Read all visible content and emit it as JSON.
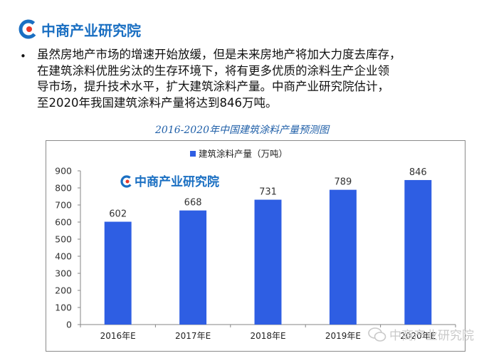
{
  "header": {
    "logo_text": "中商产业研究院",
    "brand_color": "#1a6fc2"
  },
  "bullet": {
    "lines": [
      "虽然房地产市场的增速开始放缓，但是未来房地产将加大力度去库存，",
      "在建筑涂料优胜劣汰的生存环境下，将有更多优质的涂料生产企业领",
      "导市场，提升技术水平，扩大建筑涂料产量。中商产业研究院估计，",
      "至2020年我国建筑涂料产量将达到846万吨。"
    ]
  },
  "chart_data": {
    "type": "bar",
    "title": "2016-2020年中国建筑涂料产量预测图",
    "categories": [
      "2016年E",
      "2017年E",
      "2018年E",
      "2019年E",
      "2020年E"
    ],
    "series": [
      {
        "name": "建筑涂料产量（万吨）",
        "values": [
          602,
          668,
          731,
          789,
          846
        ],
        "color": "#2e5ee3"
      }
    ],
    "data_labels": [
      "602",
      "668",
      "731",
      "789",
      "846"
    ],
    "yticks": [
      "0",
      "100",
      "200",
      "300",
      "400",
      "500",
      "600",
      "700",
      "800",
      "900"
    ],
    "ylim": [
      0,
      900
    ],
    "grid": false,
    "legend_position": "top-left",
    "watermark_text": "中商产业研究院"
  },
  "footer": {
    "watermark_text": "中商产业研究院"
  }
}
